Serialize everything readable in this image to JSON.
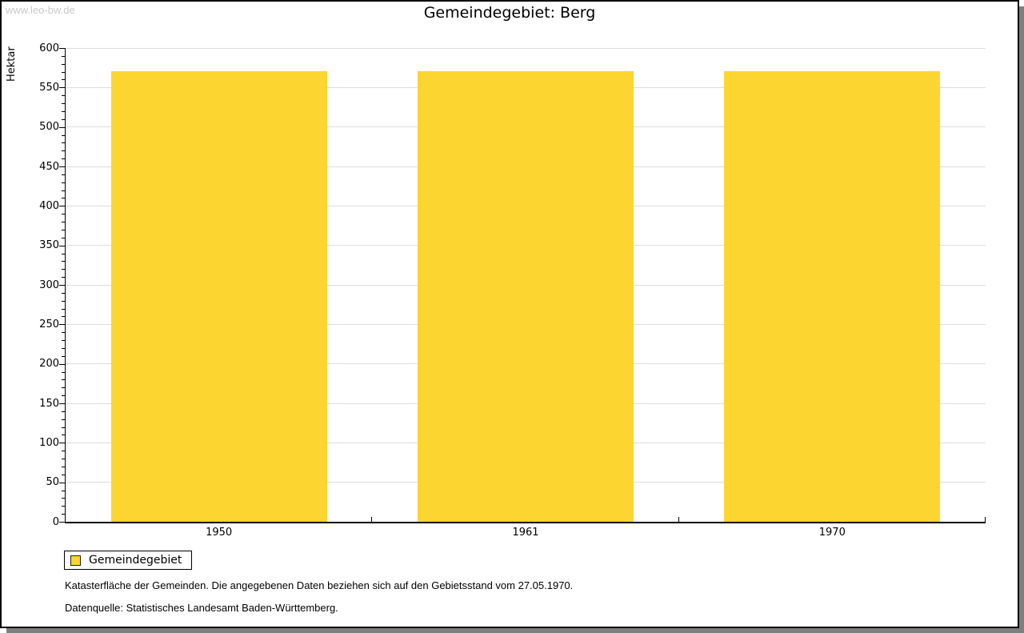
{
  "watermark": {
    "text": "www.leo-bw.de"
  },
  "header": {
    "title": "Gemeindegebiet: Berg"
  },
  "legend": {
    "label": "Gemeindegebiet"
  },
  "footer": {
    "line1": "Katasterfläche der Gemeinden. Die angegebenen Daten beziehen sich auf den Gebietsstand vom 27.05.1970.",
    "line2": "Datenquelle: Statistisches Landesamt Baden-Württemberg."
  },
  "colors": {
    "bar": "#fcd530",
    "gridline": "#dddddd",
    "axis": "#000000",
    "frame_shadow": "#7f7f7f",
    "watermark": "#c9c9c9"
  },
  "chart_data": {
    "type": "bar",
    "title": "Gemeindegebiet: Berg",
    "categories": [
      "1950",
      "1961",
      "1970"
    ],
    "values": [
      571,
      571,
      571
    ],
    "xlabel": "",
    "ylabel": "Hektar",
    "ylim": [
      0,
      600
    ],
    "y_major_step": 50,
    "y_minor_step": 10,
    "grid": true,
    "legend_entries": [
      "Gemeindegebiet"
    ],
    "legend_position": "bottom-left",
    "bar_color": "#fcd530",
    "bar_width_fraction": 0.704
  }
}
